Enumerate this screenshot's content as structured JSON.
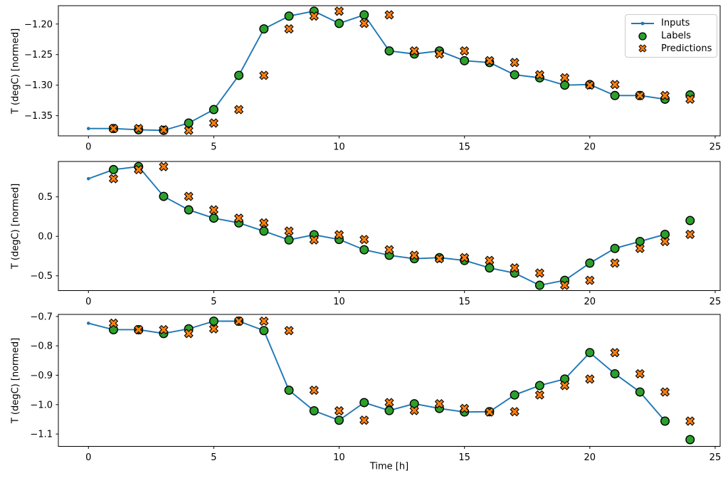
{
  "figure": {
    "xlabel": "Time [h]",
    "background": "#ffffff",
    "axis_color": "#000000",
    "legend": {
      "position": "upper right",
      "entries": [
        "Inputs",
        "Labels",
        "Predictions"
      ]
    }
  },
  "chart_data": [
    {
      "type": "line",
      "ylabel": "T (degC) [normed]",
      "xlim": [
        -1.2,
        25.2
      ],
      "ylim": [
        -1.383,
        -1.17
      ],
      "xticks": [
        0,
        5,
        10,
        15,
        20,
        25
      ],
      "xtick_labels": [
        "0",
        "5",
        "10",
        "15",
        "20",
        "25"
      ],
      "yticks": [
        -1.2,
        -1.25,
        -1.3,
        -1.35
      ],
      "ytick_labels": [
        "−1.20",
        "−1.25",
        "−1.30",
        "−1.35"
      ],
      "grid": false,
      "legend": true,
      "series": [
        {
          "name": "Inputs",
          "type": "line",
          "marker": "dot",
          "color": "#1f77b4",
          "x": [
            0,
            1,
            2,
            3,
            4,
            5,
            6,
            7,
            8,
            9,
            10,
            11,
            12,
            13,
            14,
            15,
            16,
            17,
            18,
            19,
            20,
            21,
            22,
            23
          ],
          "y": [
            -1.371,
            -1.371,
            -1.373,
            -1.374,
            -1.362,
            -1.34,
            -1.284,
            -1.208,
            -1.187,
            -1.179,
            -1.199,
            -1.185,
            -1.244,
            -1.249,
            -1.244,
            -1.26,
            -1.263,
            -1.283,
            -1.288,
            -1.3,
            -1.299,
            -1.317,
            -1.317,
            -1.323
          ]
        },
        {
          "name": "Labels",
          "type": "scatter",
          "marker": "circle",
          "color": "#2ca02c",
          "edge": "#000000",
          "x": [
            1,
            2,
            3,
            4,
            5,
            6,
            7,
            8,
            9,
            10,
            11,
            12,
            13,
            14,
            15,
            16,
            17,
            18,
            19,
            20,
            21,
            22,
            23,
            24
          ],
          "y": [
            -1.371,
            -1.373,
            -1.374,
            -1.362,
            -1.34,
            -1.284,
            -1.208,
            -1.187,
            -1.179,
            -1.199,
            -1.185,
            -1.244,
            -1.249,
            -1.244,
            -1.26,
            -1.263,
            -1.283,
            -1.288,
            -1.3,
            -1.299,
            -1.317,
            -1.317,
            -1.323,
            -1.316
          ]
        },
        {
          "name": "Predictions",
          "type": "scatter",
          "marker": "X",
          "color": "#ff7f0e",
          "edge": "#000000",
          "x": [
            1,
            2,
            3,
            4,
            5,
            6,
            7,
            8,
            9,
            10,
            11,
            12,
            13,
            14,
            15,
            16,
            17,
            18,
            19,
            20,
            21,
            22,
            23,
            24
          ],
          "y": [
            -1.371,
            -1.371,
            -1.373,
            -1.374,
            -1.362,
            -1.34,
            -1.284,
            -1.208,
            -1.187,
            -1.179,
            -1.199,
            -1.185,
            -1.244,
            -1.249,
            -1.244,
            -1.26,
            -1.263,
            -1.283,
            -1.288,
            -1.3,
            -1.299,
            -1.317,
            -1.317,
            -1.323
          ]
        }
      ]
    },
    {
      "type": "line",
      "ylabel": "T (degC) [normed]",
      "xlim": [
        -1.2,
        25.2
      ],
      "ylim": [
        -0.687,
        0.948
      ],
      "xticks": [
        0,
        5,
        10,
        15,
        20,
        25
      ],
      "xtick_labels": [
        "0",
        "5",
        "10",
        "15",
        "20",
        "25"
      ],
      "yticks": [
        0.5,
        0.0,
        -0.5
      ],
      "ytick_labels": [
        "0.5",
        "0.0",
        "−0.5"
      ],
      "grid": false,
      "legend": false,
      "series": [
        {
          "name": "Inputs",
          "type": "line",
          "marker": "dot",
          "color": "#1f77b4",
          "x": [
            0,
            1,
            2,
            3,
            4,
            5,
            6,
            7,
            8,
            9,
            10,
            11,
            12,
            13,
            14,
            15,
            16,
            17,
            18,
            19,
            20,
            21,
            22,
            23
          ],
          "y": [
            0.73,
            0.845,
            0.883,
            0.506,
            0.335,
            0.23,
            0.17,
            0.066,
            -0.045,
            0.02,
            -0.04,
            -0.17,
            -0.24,
            -0.283,
            -0.27,
            -0.305,
            -0.4,
            -0.465,
            -0.62,
            -0.557,
            -0.339,
            -0.153,
            -0.065,
            0.025
          ]
        },
        {
          "name": "Labels",
          "type": "scatter",
          "marker": "circle",
          "color": "#2ca02c",
          "edge": "#000000",
          "x": [
            1,
            2,
            3,
            4,
            5,
            6,
            7,
            8,
            9,
            10,
            11,
            12,
            13,
            14,
            15,
            16,
            17,
            18,
            19,
            20,
            21,
            22,
            23,
            24
          ],
          "y": [
            0.845,
            0.883,
            0.506,
            0.335,
            0.23,
            0.17,
            0.066,
            -0.045,
            0.02,
            -0.04,
            -0.17,
            -0.24,
            -0.283,
            -0.27,
            -0.305,
            -0.4,
            -0.465,
            -0.62,
            -0.557,
            -0.339,
            -0.153,
            -0.065,
            0.025,
            0.2
          ]
        },
        {
          "name": "Predictions",
          "type": "scatter",
          "marker": "X",
          "color": "#ff7f0e",
          "edge": "#000000",
          "x": [
            1,
            2,
            3,
            4,
            5,
            6,
            7,
            8,
            9,
            10,
            11,
            12,
            13,
            14,
            15,
            16,
            17,
            18,
            19,
            20,
            21,
            22,
            23,
            24
          ],
          "y": [
            0.73,
            0.845,
            0.883,
            0.506,
            0.335,
            0.23,
            0.17,
            0.066,
            -0.045,
            0.02,
            -0.04,
            -0.17,
            -0.24,
            -0.283,
            -0.27,
            -0.305,
            -0.4,
            -0.465,
            -0.62,
            -0.557,
            -0.339,
            -0.153,
            -0.065,
            0.025
          ]
        }
      ]
    },
    {
      "type": "line",
      "ylabel": "T (degC) [normed]",
      "xlim": [
        -1.2,
        25.2
      ],
      "ylim": [
        -1.142,
        -0.693
      ],
      "xticks": [
        0,
        5,
        10,
        15,
        20,
        25
      ],
      "xtick_labels": [
        "0",
        "5",
        "10",
        "15",
        "20",
        "25"
      ],
      "yticks": [
        -0.7,
        -0.8,
        -0.9,
        -1.0,
        -1.1
      ],
      "ytick_labels": [
        "−0.7",
        "−0.8",
        "−0.9",
        "−1.0",
        "−1.1"
      ],
      "grid": false,
      "legend": false,
      "series": [
        {
          "name": "Inputs",
          "type": "line",
          "marker": "dot",
          "color": "#1f77b4",
          "x": [
            0,
            1,
            2,
            3,
            4,
            5,
            6,
            7,
            8,
            9,
            10,
            11,
            12,
            13,
            14,
            15,
            16,
            17,
            18,
            19,
            20,
            21,
            22,
            23
          ],
          "y": [
            -0.723,
            -0.745,
            -0.745,
            -0.758,
            -0.742,
            -0.716,
            -0.716,
            -0.748,
            -0.951,
            -1.021,
            -1.053,
            -0.993,
            -1.02,
            -0.997,
            -1.013,
            -1.025,
            -1.024,
            -0.967,
            -0.935,
            -0.913,
            -0.823,
            -0.895,
            -0.957,
            -1.056
          ]
        },
        {
          "name": "Labels",
          "type": "scatter",
          "marker": "circle",
          "color": "#2ca02c",
          "edge": "#000000",
          "x": [
            1,
            2,
            3,
            4,
            5,
            6,
            7,
            8,
            9,
            10,
            11,
            12,
            13,
            14,
            15,
            16,
            17,
            18,
            19,
            20,
            21,
            22,
            23,
            24
          ],
          "y": [
            -0.745,
            -0.745,
            -0.758,
            -0.742,
            -0.716,
            -0.716,
            -0.748,
            -0.951,
            -1.021,
            -1.053,
            -0.993,
            -1.02,
            -0.997,
            -1.013,
            -1.025,
            -1.024,
            -0.967,
            -0.935,
            -0.913,
            -0.823,
            -0.895,
            -0.957,
            -1.056,
            -1.119
          ]
        },
        {
          "name": "Predictions",
          "type": "scatter",
          "marker": "X",
          "color": "#ff7f0e",
          "edge": "#000000",
          "x": [
            1,
            2,
            3,
            4,
            5,
            6,
            7,
            8,
            9,
            10,
            11,
            12,
            13,
            14,
            15,
            16,
            17,
            18,
            19,
            20,
            21,
            22,
            23,
            24
          ],
          "y": [
            -0.723,
            -0.745,
            -0.745,
            -0.758,
            -0.742,
            -0.716,
            -0.716,
            -0.748,
            -0.951,
            -1.021,
            -1.053,
            -0.993,
            -1.02,
            -0.997,
            -1.013,
            -1.025,
            -1.024,
            -0.967,
            -0.935,
            -0.913,
            -0.823,
            -0.895,
            -0.957,
            -1.056
          ]
        }
      ]
    }
  ]
}
